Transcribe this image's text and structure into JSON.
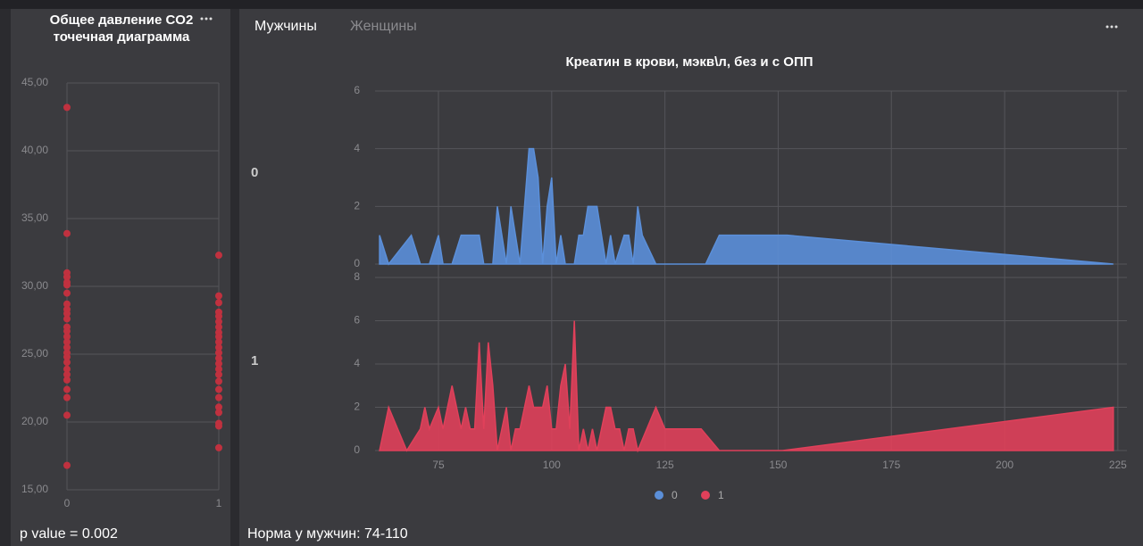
{
  "tabs": [
    "Мужчины",
    "Женщины"
  ],
  "chart_data": [
    {
      "type": "scatter",
      "title": "Общее давление CO2 точечная диаграмма",
      "footnote": "p value = 0.002",
      "xlim": [
        0,
        1
      ],
      "xticks": [
        0,
        1
      ],
      "ylim": [
        15,
        45
      ],
      "yticks": [
        {
          "value": 15,
          "label": "15,00"
        },
        {
          "value": 20,
          "label": "20,00"
        },
        {
          "value": 25,
          "label": "25,00"
        },
        {
          "value": 30,
          "label": "30,00"
        },
        {
          "value": 35,
          "label": "35,00"
        },
        {
          "value": 40,
          "label": "40,00"
        },
        {
          "value": 45,
          "label": "45,00"
        }
      ],
      "grid": true,
      "series": [
        {
          "color": "#c0313f",
          "x": [
            0,
            0,
            0,
            0,
            0,
            0,
            0,
            0,
            0,
            0,
            0,
            0,
            0,
            0,
            0,
            0,
            0,
            0,
            0,
            0,
            0,
            0,
            0,
            0,
            0,
            0,
            1,
            1,
            1,
            1,
            1,
            1,
            1,
            1,
            1,
            1,
            1,
            1,
            1,
            1,
            1,
            1,
            1,
            1,
            1,
            1,
            1,
            1,
            1,
            1
          ],
          "values": [
            43.2,
            33.9,
            31.0,
            30.7,
            30.3,
            30.1,
            29.5,
            28.7,
            28.3,
            28.0,
            27.6,
            27.0,
            26.7,
            26.3,
            25.9,
            25.5,
            25.1,
            24.8,
            24.4,
            23.9,
            23.5,
            23.1,
            22.4,
            21.8,
            20.5,
            16.8,
            32.3,
            29.3,
            28.8,
            28.1,
            27.8,
            27.4,
            27.0,
            26.6,
            26.3,
            25.9,
            25.5,
            25.1,
            24.7,
            24.3,
            23.9,
            23.5,
            23.0,
            22.4,
            21.8,
            21.1,
            20.7,
            19.9,
            19.7,
            18.1
          ]
        }
      ]
    },
    {
      "type": "area",
      "title": "Креатин в крови, мэкв\\л, без и с ОПП",
      "footnote": "Норма у мужчин: 74-110",
      "xlim": [
        61,
        227
      ],
      "xticks": [
        75,
        100,
        125,
        150,
        175,
        200,
        225
      ],
      "grid": true,
      "panels": [
        {
          "label": "0",
          "ylim": [
            0,
            6
          ],
          "yticks": [
            0,
            2,
            4,
            6
          ],
          "series": {
            "name": "0",
            "color": "#5b8fd9",
            "x": [
              62,
              64,
              69,
              71,
              73,
              75,
              76,
              78,
              80,
              84,
              85,
              87,
              88,
              90,
              91,
              93,
              95,
              96,
              97,
              98,
              99,
              100,
              101,
              102,
              103,
              105,
              106,
              107,
              108,
              110,
              112,
              113,
              114,
              116,
              117,
              118,
              119,
              120,
              123,
              134,
              137,
              152,
              224
            ],
            "values": [
              1,
              0,
              1,
              0,
              0,
              1,
              0,
              0,
              1,
              1,
              0,
              0,
              2,
              0,
              2,
              0,
              4,
              4,
              3,
              0,
              2,
              3,
              0,
              1,
              0,
              0,
              1,
              1,
              2,
              2,
              0,
              1,
              0,
              1,
              1,
              0,
              2,
              1,
              0,
              0,
              1,
              1,
              0
            ]
          }
        },
        {
          "label": "1",
          "ylim": [
            0,
            8
          ],
          "yticks": [
            0,
            2,
            4,
            6,
            8
          ],
          "series": {
            "name": "1",
            "color": "#e0405a",
            "x": [
              62,
              64,
              68,
              71,
              72,
              73,
              75,
              76,
              78,
              80,
              81,
              82,
              83,
              84,
              85,
              86,
              87,
              88,
              90,
              91,
              92,
              93,
              95,
              96,
              98,
              99,
              100,
              101,
              102,
              103,
              104,
              105,
              106,
              107,
              108,
              109,
              110,
              112,
              113,
              114,
              115,
              116,
              117,
              118,
              119,
              123,
              125,
              133,
              137,
              151,
              224
            ],
            "values": [
              0,
              2,
              0,
              1,
              2,
              1,
              2,
              1,
              3,
              1,
              2,
              1,
              1,
              5,
              1,
              5,
              3,
              0,
              2,
              0,
              1,
              1,
              3,
              2,
              2,
              3,
              1,
              1,
              3,
              4,
              1,
              6,
              0,
              1,
              0,
              1,
              0,
              2,
              2,
              1,
              1,
              0,
              1,
              1,
              0,
              2,
              1,
              1,
              0,
              0,
              2
            ]
          }
        }
      ]
    }
  ]
}
